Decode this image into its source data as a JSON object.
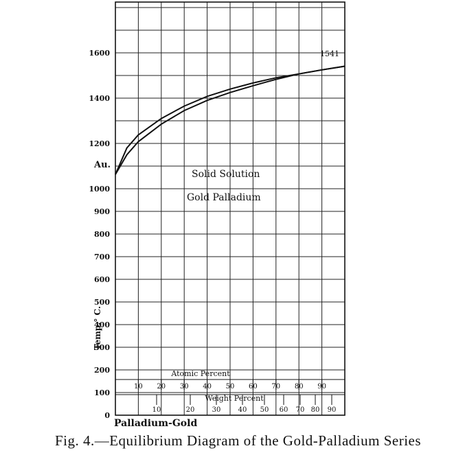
{
  "chart_data": {
    "type": "line",
    "title": "",
    "caption": "Fig. 4.—Equilibrium Diagram of the Gold-Palladium Series",
    "xlabel": "Palladium-Gold",
    "ylabel": "Temp.° C.",
    "ylim": [
      0,
      1800
    ],
    "yticks": [
      "0",
      "100",
      "200",
      "300",
      "400",
      "500",
      "600",
      "700",
      "800",
      "900",
      "1000",
      "1200",
      "1400",
      "1600"
    ],
    "atomic_axis": {
      "label": "Atomic Percent",
      "ticks": [
        "10",
        "20",
        "30",
        "40",
        "50",
        "60",
        "70",
        "80",
        "90"
      ]
    },
    "weight_axis": {
      "label": "Weight Percent",
      "ticks": [
        "10",
        "20",
        "30",
        "40",
        "50",
        "60",
        "70",
        "80",
        "90"
      ]
    },
    "annotations": {
      "au_label": "Au.",
      "melting_point_label": "1541",
      "region_label_line1": "Solid Solution",
      "region_label_line2": "Gold Palladium"
    },
    "series": [
      {
        "role": "liquidus",
        "x": [
          0,
          5,
          10,
          20,
          30,
          40,
          50,
          60,
          70,
          80,
          90,
          100
        ],
        "y": [
          1063,
          1180,
          1238,
          1310,
          1365,
          1408,
          1440,
          1467,
          1490,
          1507,
          1525,
          1541
        ]
      },
      {
        "role": "solidus",
        "x": [
          0,
          5,
          10,
          20,
          30,
          40,
          50,
          60,
          70,
          80,
          90,
          100
        ],
        "y": [
          1063,
          1150,
          1208,
          1285,
          1345,
          1390,
          1425,
          1455,
          1483,
          1507,
          1525,
          1541
        ]
      }
    ]
  }
}
